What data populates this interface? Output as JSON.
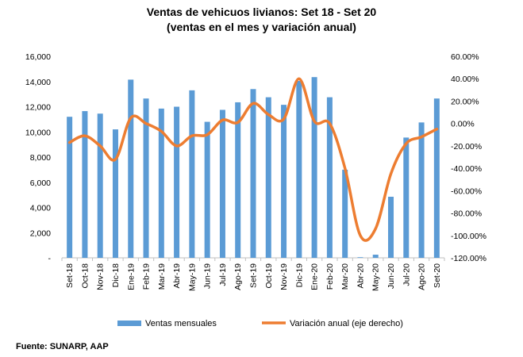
{
  "chart_data": {
    "type": "bar",
    "title": "Ventas de vehicuos livianos: Set 18 - Set 20",
    "subtitle": "(ventas en el mes y variación anual)",
    "categories": [
      "Set-18",
      "Oct-18",
      "Nov-18",
      "Dic-18",
      "Ene-19",
      "Feb-19",
      "Mar-19",
      "Abr-19",
      "May-19",
      "Jun-19",
      "Jul-19",
      "Ago-19",
      "Set-19",
      "Oct-19",
      "Nov-19",
      "Dic-19",
      "Ene-20",
      "Feb-20",
      "Mar-20",
      "Abr-20",
      "May-20",
      "Jun-20",
      "Jul-20",
      "Ago-20",
      "Set-20"
    ],
    "series": [
      {
        "name": "Ventas mensuales",
        "kind": "bar",
        "axis": "left",
        "color": "#5b9bd5",
        "values": [
          11200,
          11650,
          11450,
          10200,
          14150,
          12650,
          11850,
          12000,
          13300,
          10800,
          11750,
          12350,
          13400,
          12750,
          12150,
          14050,
          14350,
          12750,
          7000,
          50,
          250,
          4850,
          9550,
          10750,
          12650
        ]
      },
      {
        "name": "Variación anual (eje derecho)",
        "kind": "line",
        "axis": "right",
        "color": "#ed7d31",
        "values": [
          -17,
          -11,
          -20,
          -32,
          5,
          0,
          -7,
          -20,
          -11,
          -10,
          3,
          1,
          18,
          8,
          4,
          40,
          2,
          0,
          -40,
          -100,
          -94,
          -45,
          -18,
          -12,
          -5
        ]
      }
    ],
    "y_left": {
      "min": 0,
      "max": 16000,
      "ticks": [
        "-",
        "2,000",
        "4,000",
        "6,000",
        "8,000",
        "10,000",
        "12,000",
        "14,000",
        "16,000"
      ]
    },
    "y_right": {
      "min": -120,
      "max": 60,
      "ticks": [
        "-120.00%",
        "-100.00%",
        "-80.00%",
        "-60.00%",
        "-40.00%",
        "-20.00%",
        "0.00%",
        "20.00%",
        "40.00%",
        "60.00%"
      ]
    },
    "grid": false,
    "legend": "bottom"
  },
  "source": "Fuente: SUNARP, AAP"
}
